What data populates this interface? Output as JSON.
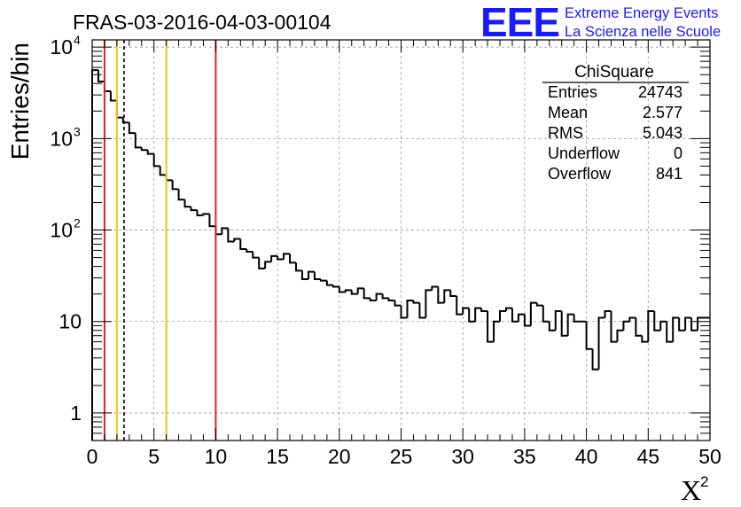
{
  "chart_data": {
    "type": "histogram",
    "title": "FRAS-03-2016-04-03-00104",
    "xlabel": "X",
    "xlabel_sup": "2",
    "ylabel": "Entries/bin",
    "xlim": [
      0,
      50
    ],
    "ylim": [
      0.5,
      12000
    ],
    "y_scale": "log",
    "grid": true,
    "bin_width": 0.5,
    "x_ticks": [
      0,
      5,
      10,
      15,
      20,
      25,
      30,
      35,
      40,
      45,
      50
    ],
    "x_tick_labels": [
      "0",
      "5",
      "10",
      "15",
      "20",
      "25",
      "30",
      "35",
      "40",
      "45",
      "50"
    ],
    "y_ticks": [
      1,
      10,
      100,
      1000,
      10000
    ],
    "y_tick_labels": [
      {
        "base": "1",
        "exp": ""
      },
      {
        "base": "10",
        "exp": ""
      },
      {
        "base": "10",
        "exp": "2"
      },
      {
        "base": "10",
        "exp": "3"
      },
      {
        "base": "10",
        "exp": "4"
      }
    ],
    "values": [
      5600,
      4200,
      3300,
      2600,
      1700,
      1500,
      1150,
      800,
      750,
      680,
      500,
      400,
      350,
      280,
      215,
      180,
      165,
      145,
      150,
      110,
      90,
      105,
      75,
      80,
      62,
      58,
      50,
      38,
      45,
      52,
      48,
      55,
      44,
      36,
      29,
      35,
      29,
      28,
      25,
      24,
      21,
      22,
      20,
      23,
      18,
      17,
      20,
      18,
      17,
      15,
      11,
      17,
      16,
      11,
      22,
      24,
      16,
      22,
      19,
      12,
      14,
      10,
      14,
      13,
      6,
      10,
      13,
      14,
      10,
      12,
      9,
      16,
      15,
      10,
      8,
      13,
      7,
      12,
      10,
      10,
      5,
      3,
      11,
      13,
      6,
      8,
      10,
      11,
      7,
      6,
      13,
      8,
      10,
      6,
      11,
      8,
      11,
      8,
      11,
      11
    ],
    "vertical_lines": [
      {
        "x": 1,
        "color": "#e8201c",
        "style": "solid"
      },
      {
        "x": 2,
        "color": "#f0c020",
        "style": "solid"
      },
      {
        "x": 2.577,
        "color": "#000000",
        "style": "dashed"
      },
      {
        "x": 6,
        "color": "#f0c020",
        "style": "solid"
      },
      {
        "x": 10,
        "color": "#e8201c",
        "style": "solid"
      }
    ],
    "stats": {
      "title": "ChiSquare",
      "rows": [
        {
          "label": "Entries",
          "value": "24743"
        },
        {
          "label": "Mean",
          "value": "2.577"
        },
        {
          "label": "RMS",
          "value": "5.043"
        },
        {
          "label": "Underflow",
          "value": "0"
        },
        {
          "label": "Overflow",
          "value": "841"
        }
      ]
    }
  },
  "logo": {
    "mark": "EEE",
    "line1": "Extreme Energy Events",
    "line2": "La Scienza nelle Scuole",
    "color": "#1a1aff"
  }
}
